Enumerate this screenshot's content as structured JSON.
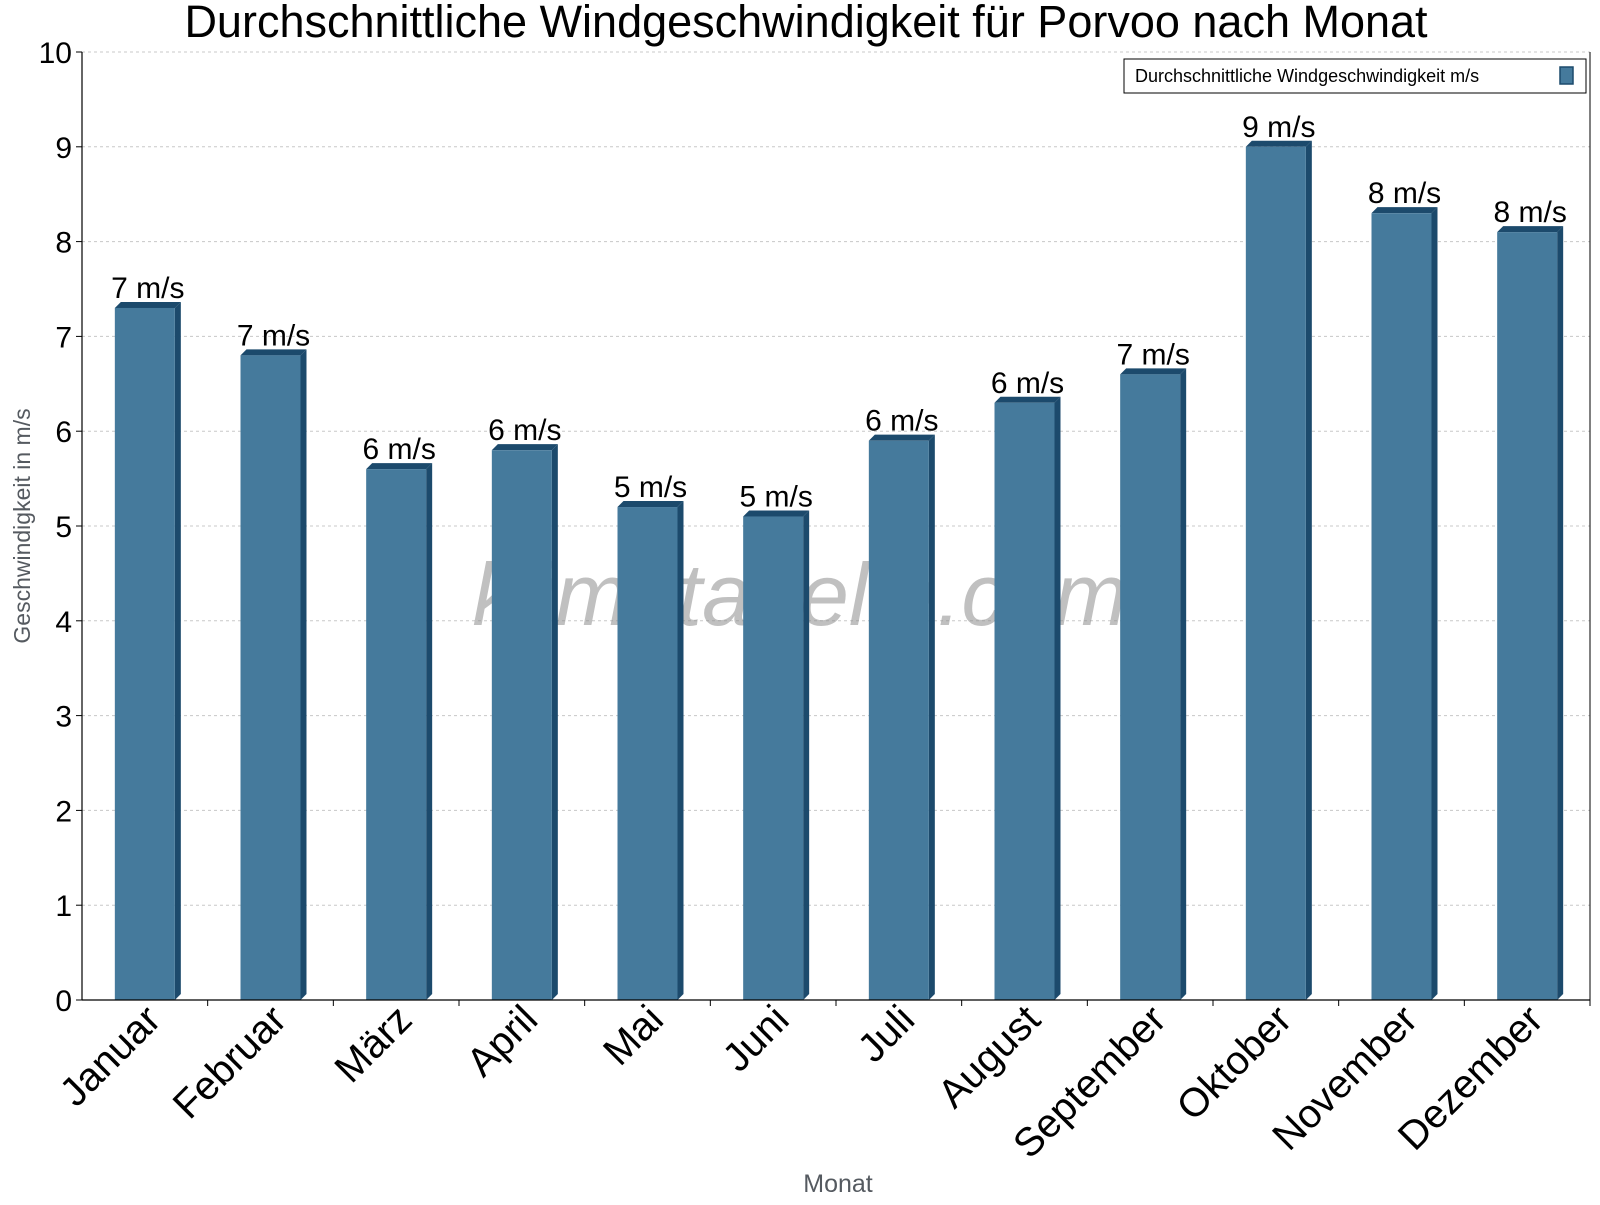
{
  "chart_data": {
    "type": "bar",
    "title": "Durchschnittliche Windgeschwindigkeit für Porvoo nach Monat",
    "xlabel": "Monat",
    "ylabel": "Geschwindigkeit in m/s",
    "categories": [
      "Januar",
      "Februar",
      "März",
      "April",
      "Mai",
      "Juni",
      "Juli",
      "August",
      "September",
      "Oktober",
      "November",
      "Dezember"
    ],
    "series": [
      {
        "name": "Durchschnittliche Windgeschwindigkeit m/s",
        "values": [
          7.3,
          6.8,
          5.6,
          5.8,
          5.2,
          5.1,
          5.9,
          6.3,
          6.6,
          9.0,
          8.3,
          8.1
        ],
        "labels": [
          "7 m/s",
          "7 m/s",
          "6 m/s",
          "6 m/s",
          "5 m/s",
          "5 m/s",
          "6 m/s",
          "6 m/s",
          "7 m/s",
          "9 m/s",
          "8 m/s",
          "8 m/s"
        ]
      }
    ],
    "ylim": [
      0,
      10
    ],
    "yticks": [
      "0",
      "1",
      "2",
      "3",
      "4",
      "5",
      "6",
      "7",
      "8",
      "9",
      "10"
    ],
    "grid": true,
    "legend_position": "top-right",
    "colors": {
      "bar": "#457a9c",
      "bar_shade": "#1c4a6c",
      "grid": "#c8c8c8",
      "axis_label": "#555a60"
    }
  },
  "watermark": "klimatabelle.com"
}
